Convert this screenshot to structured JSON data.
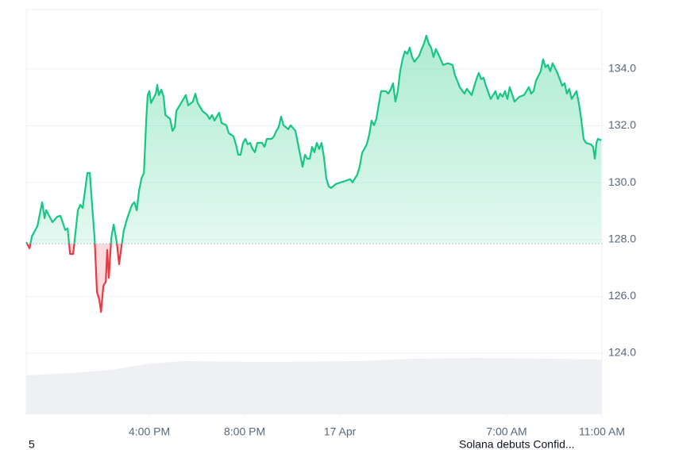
{
  "chart_data": {
    "type": "line",
    "x": [
      10.83,
      10.97,
      11.07,
      11.3,
      11.5,
      11.6,
      11.67,
      11.93,
      12.13,
      12.27,
      12.47,
      12.57,
      12.67,
      12.8,
      13.0,
      13.1,
      13.2,
      13.4,
      13.5,
      13.6,
      13.7,
      13.8,
      13.9,
      13.97,
      14.07,
      14.17,
      14.23,
      14.3,
      14.4,
      14.5,
      14.63,
      14.73,
      14.83,
      14.93,
      15.07,
      15.27,
      15.37,
      15.47,
      15.57,
      15.67,
      15.77,
      15.87,
      15.93,
      16.0,
      16.07,
      16.27,
      16.33,
      16.4,
      16.5,
      16.6,
      16.67,
      16.87,
      16.97,
      17.07,
      17.13,
      17.33,
      17.53,
      17.63,
      17.83,
      17.93,
      18.03,
      18.23,
      18.43,
      18.53,
      18.63,
      18.73,
      18.93,
      19.03,
      19.23,
      19.33,
      19.53,
      19.63,
      19.73,
      19.83,
      19.93,
      20.03,
      20.13,
      20.23,
      20.33,
      20.43,
      20.53,
      20.73,
      20.83,
      20.93,
      21.13,
      21.23,
      21.33,
      21.43,
      21.53,
      21.63,
      21.83,
      21.93,
      22.13,
      22.23,
      22.33,
      22.43,
      22.53,
      22.63,
      22.73,
      22.83,
      22.93,
      23.03,
      23.13,
      23.23,
      23.33,
      23.43,
      23.53,
      23.63,
      23.83,
      24.03,
      24.23,
      24.43,
      24.53,
      24.73,
      24.83,
      24.93,
      25.13,
      25.23,
      25.33,
      25.43,
      25.53,
      25.63,
      25.73,
      25.93,
      26.03,
      26.13,
      26.23,
      26.33,
      26.43,
      26.53,
      26.63,
      26.73,
      26.83,
      26.93,
      27.03,
      27.13,
      27.33,
      27.43,
      27.53,
      27.63,
      27.73,
      27.83,
      27.93,
      28.03,
      28.13,
      28.23,
      28.33,
      28.53,
      28.73,
      28.83,
      28.93,
      29.03,
      29.23,
      29.33,
      29.53,
      29.73,
      29.83,
      29.93,
      30.03,
      30.13,
      30.33,
      30.53,
      30.63,
      30.73,
      30.83,
      30.93,
      31.03,
      31.13,
      31.33,
      31.53,
      31.73,
      31.93,
      32.03,
      32.13,
      32.23,
      32.43,
      32.53,
      32.63,
      32.73,
      32.83,
      32.93,
      33.13,
      33.23,
      33.33,
      33.43,
      33.53,
      33.63,
      33.73,
      33.93,
      34.03,
      34.13,
      34.23,
      34.33,
      34.53,
      34.63,
      34.7,
      34.77,
      34.83,
      34.97
    ],
    "values": [
      127.91,
      127.69,
      128.11,
      128.47,
      129.31,
      128.75,
      129.03,
      128.61,
      128.8,
      128.83,
      128.33,
      128.39,
      127.49,
      127.49,
      129.03,
      129.22,
      129.11,
      130.34,
      130.34,
      129.17,
      128.05,
      126.15,
      125.87,
      125.45,
      126.37,
      126.51,
      127.63,
      126.65,
      128.05,
      128.53,
      127.91,
      127.13,
      127.77,
      128.33,
      128.75,
      129.22,
      129.31,
      129.03,
      129.73,
      130.15,
      130.34,
      132.24,
      133.08,
      133.22,
      132.8,
      133.13,
      133.44,
      133.08,
      133.27,
      133.02,
      132.38,
      132.24,
      131.82,
      131.96,
      132.52,
      132.8,
      133.08,
      132.72,
      132.85,
      133.13,
      132.8,
      132.52,
      132.38,
      132.24,
      132.38,
      132.18,
      132.46,
      132.1,
      132.02,
      131.74,
      131.63,
      131.35,
      130.98,
      130.98,
      131.4,
      131.54,
      131.35,
      131.4,
      131.18,
      131.07,
      131.4,
      131.4,
      131.26,
      131.54,
      131.54,
      131.63,
      131.82,
      131.96,
      132.32,
      132.02,
      131.88,
      132.02,
      131.82,
      131.4,
      130.98,
      130.56,
      130.98,
      130.84,
      130.84,
      131.26,
      131.07,
      131.4,
      131.18,
      131.4,
      130.9,
      130.15,
      129.87,
      129.81,
      129.95,
      130.01,
      130.06,
      130.12,
      130.01,
      130.28,
      130.56,
      131.04,
      131.35,
      131.68,
      132.18,
      132.02,
      132.24,
      132.74,
      133.22,
      133.22,
      133.13,
      133.27,
      133.5,
      132.85,
      133.22,
      133.92,
      134.34,
      134.62,
      134.53,
      134.75,
      134.42,
      134.25,
      134.47,
      134.7,
      134.89,
      135.17,
      134.89,
      134.75,
      134.42,
      134.7,
      134.53,
      134.34,
      134.14,
      134.2,
      134.14,
      133.78,
      133.58,
      133.36,
      133.13,
      133.3,
      133.08,
      133.64,
      133.86,
      133.64,
      133.69,
      133.41,
      132.94,
      133.22,
      132.94,
      133.13,
      133.02,
      133.22,
      132.94,
      133.36,
      132.85,
      133.02,
      133.08,
      133.36,
      133.13,
      133.22,
      133.58,
      133.92,
      134.34,
      134.06,
      134.14,
      133.92,
      134.2,
      133.86,
      133.64,
      133.41,
      133.5,
      133.13,
      133.3,
      132.94,
      133.22,
      132.8,
      132.24,
      131.54,
      131.4,
      131.35,
      131.26,
      130.84,
      131.4,
      131.54,
      131.49
    ],
    "baseline": 127.85,
    "color": "#16c784",
    "negative_color": "#ea3943",
    "xlim": [
      10.83,
      35.0
    ],
    "xticks": [
      {
        "value": 16,
        "label": "4:00 PM"
      },
      {
        "value": 20,
        "label": "8:00 PM"
      },
      {
        "value": 24,
        "label": "17 Apr"
      },
      {
        "value": 31,
        "label": "7:00 AM"
      },
      {
        "value": 35,
        "label": "11:00 AM"
      }
    ],
    "ylim": [
      121.85,
      136.09
    ],
    "yticks": [
      {
        "value": 124,
        "label": "124.0"
      },
      {
        "value": 126,
        "label": "126.0"
      },
      {
        "value": 128,
        "label": "128.0"
      },
      {
        "value": 130,
        "label": "130.0"
      },
      {
        "value": 132,
        "label": "132.0"
      },
      {
        "value": 134,
        "label": "134.0"
      }
    ],
    "grid": true,
    "annotations": [
      "5",
      "Solana debuts Confid..."
    ]
  }
}
